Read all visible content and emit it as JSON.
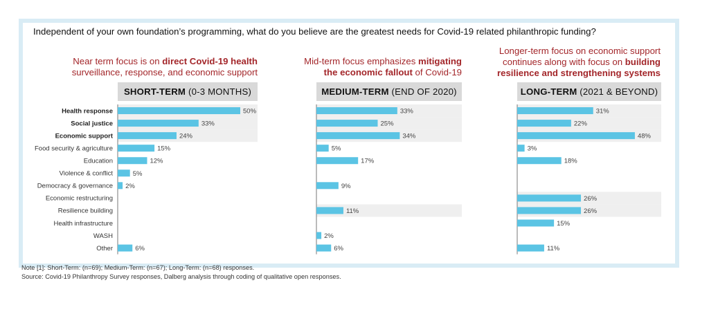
{
  "question": "Independent of your own foundation’s programming, what do you believe are the greatest needs for Covid-19 related philanthropic funding?",
  "colors": {
    "bar": "#5bc4e4",
    "highlight": "#efefef",
    "heading": "#a3262a",
    "period_bg": "#d9d9d9",
    "frame": "#d9ecf5",
    "axis": "#777777"
  },
  "panels": [
    {
      "heading_pre": "Near term focus is on ",
      "heading_bold": "direct Covid-19 health",
      "heading_bold2": "",
      "heading_line2": "surveillance, response, and economic support",
      "heading_post": "",
      "period_bold": "SHORT-TERM",
      "period_rest": " (0-3 MONTHS)"
    },
    {
      "heading_pre": "Mid-term focus emphasizes ",
      "heading_bold": "mitigating",
      "heading_bold2": "the economic fallout",
      "heading_line2": "",
      "heading_post": " of Covid-19",
      "period_bold": "MEDIUM-TERM",
      "period_rest": " (END OF 2020)"
    },
    {
      "heading_pre": "Longer-term focus on economic support",
      "heading_bold": "",
      "heading_bold2": "",
      "heading_line2": "continues along with focus on ",
      "heading_post": "building",
      "heading_line3": "resilience and strengthening systems",
      "period_bold": "LONG-TERM",
      "period_rest": " (2021 & BEYOND)"
    }
  ],
  "chart_data": {
    "type": "bar",
    "orientation": "horizontal",
    "unit": "%",
    "categories": [
      "Health response",
      "Social justice",
      "Economic support",
      "Food security & agriculture",
      "Education",
      "Violence & conflict",
      "Democracy & governance",
      "Economic restructuring",
      "Resilience building",
      "Health infrastructure",
      "WASH",
      "Other"
    ],
    "bold_categories": [
      "Health response",
      "Social justice",
      "Economic support"
    ],
    "series": [
      {
        "values": [
          50,
          33,
          24,
          15,
          12,
          5,
          2,
          null,
          null,
          null,
          null,
          6
        ],
        "highlight_rows": [
          0,
          1,
          2
        ]
      },
      {
        "values": [
          33,
          25,
          34,
          5,
          17,
          null,
          9,
          null,
          11,
          null,
          2,
          6
        ],
        "highlight_rows": [
          0,
          1,
          2,
          8
        ]
      },
      {
        "values": [
          31,
          22,
          48,
          3,
          18,
          null,
          null,
          26,
          26,
          15,
          null,
          11
        ],
        "highlight_rows": [
          0,
          1,
          2,
          7,
          8
        ]
      }
    ],
    "xlim": [
      0,
      50
    ]
  },
  "note": "Note [1]: Short-Term: (n=69); Medium-Term: (n=67); Long-Term: (n=68) responses.",
  "source": "Source: Covid-19 Philanthropy Survey responses, Dalberg analysis through coding of qualitative open responses."
}
